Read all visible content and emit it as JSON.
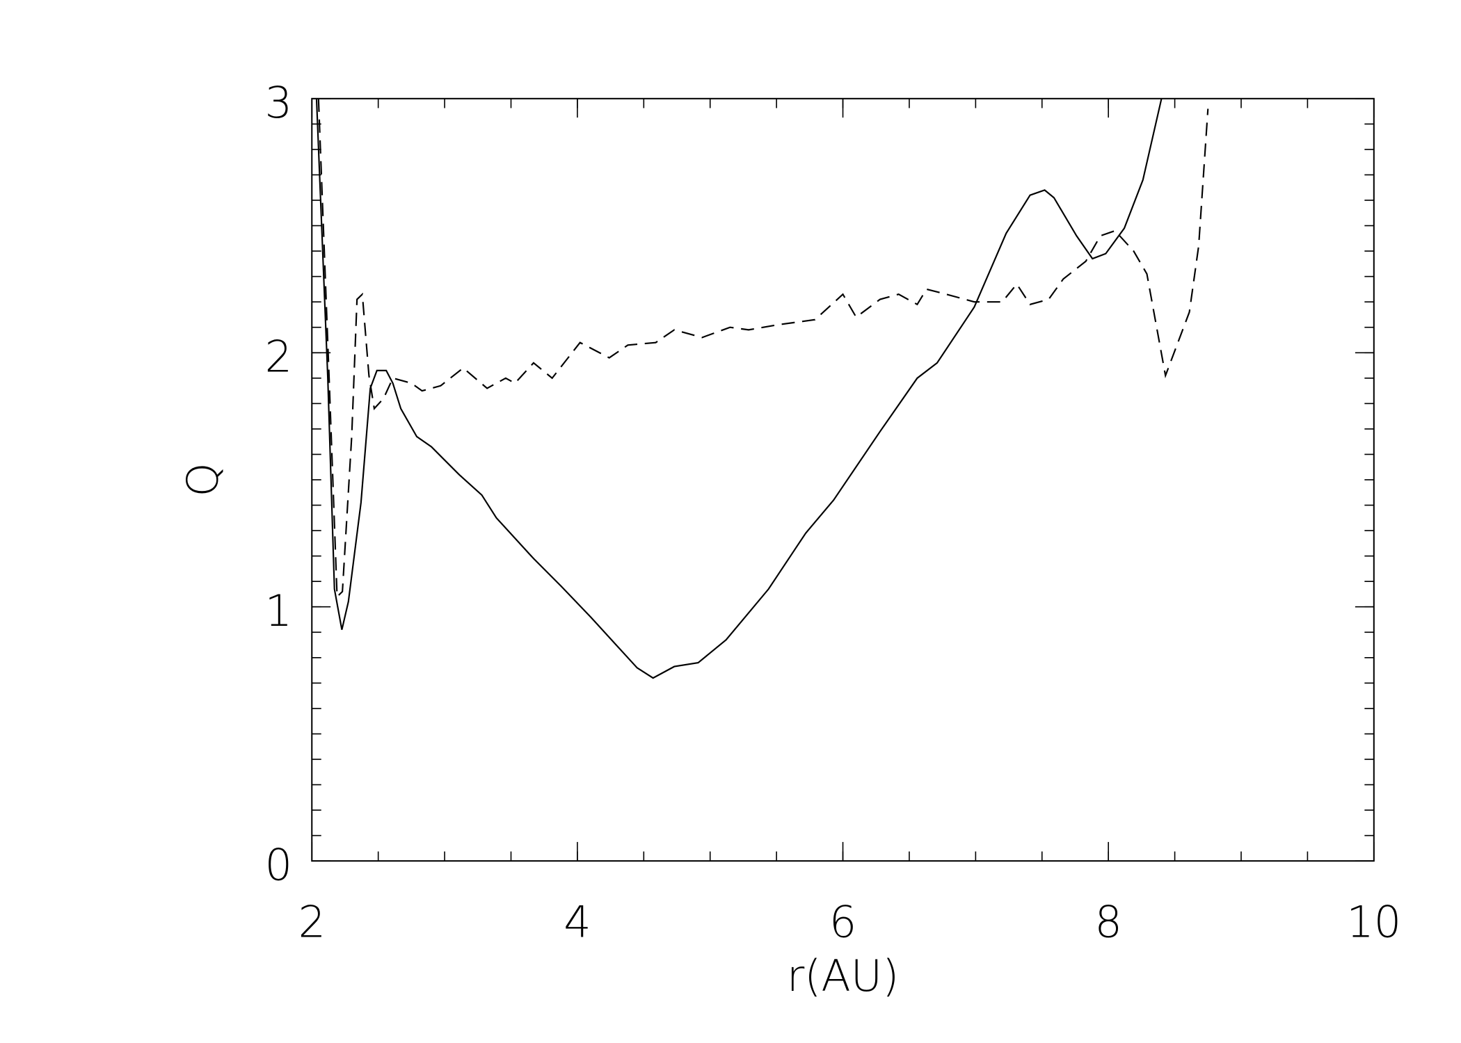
{
  "chart_data": {
    "type": "line",
    "xlabel": "r(AU)",
    "ylabel": "Q",
    "xlim": [
      2,
      10
    ],
    "ylim": [
      0,
      3
    ],
    "xticks": [
      2,
      4,
      6,
      8,
      10
    ],
    "yticks": [
      0,
      1,
      2,
      3
    ],
    "xminor_step": 0.5,
    "yminor_step": 0.1,
    "series": [
      {
        "color": "#000000",
        "dashed": false,
        "x": [
          2.035,
          2.12,
          2.17,
          2.226,
          2.275,
          2.37,
          2.44,
          2.49,
          2.56,
          2.61,
          2.67,
          2.79,
          2.9,
          3.11,
          3.28,
          3.39,
          3.67,
          3.88,
          4.1,
          4.31,
          4.45,
          4.57,
          4.73,
          4.91,
          5.12,
          5.44,
          5.72,
          5.93,
          6.28,
          6.56,
          6.71,
          6.99,
          7.23,
          7.41,
          7.52,
          7.59,
          7.76,
          7.88,
          7.98,
          8.12,
          8.26,
          8.4
        ],
        "values": [
          3.0,
          1.9,
          1.07,
          0.91,
          1.02,
          1.41,
          1.86,
          1.93,
          1.93,
          1.88,
          1.78,
          1.67,
          1.63,
          1.52,
          1.44,
          1.35,
          1.19,
          1.08,
          0.96,
          0.84,
          0.76,
          0.72,
          0.765,
          0.78,
          0.87,
          1.07,
          1.29,
          1.42,
          1.69,
          1.9,
          1.96,
          2.18,
          2.47,
          2.62,
          2.64,
          2.61,
          2.46,
          2.37,
          2.39,
          2.49,
          2.68,
          3.0
        ]
      },
      {
        "color": "#000000",
        "dashed": true,
        "x": [
          2.05,
          2.13,
          2.19,
          2.23,
          2.3,
          2.34,
          2.38,
          2.43,
          2.47,
          2.54,
          2.61,
          2.75,
          2.83,
          2.97,
          3.14,
          3.32,
          3.46,
          3.53,
          3.67,
          3.81,
          4.02,
          4.24,
          4.38,
          4.59,
          4.73,
          4.94,
          5.15,
          5.29,
          5.51,
          5.79,
          6.0,
          6.1,
          6.28,
          6.42,
          6.56,
          6.63,
          6.78,
          6.99,
          7.2,
          7.31,
          7.41,
          7.55,
          7.66,
          7.83,
          7.94,
          8.05,
          8.19,
          8.29,
          8.43,
          8.61,
          8.68,
          8.75
        ],
        "values": [
          3.0,
          1.9,
          1.04,
          1.06,
          1.67,
          2.21,
          2.23,
          1.91,
          1.78,
          1.82,
          1.9,
          1.88,
          1.85,
          1.87,
          1.94,
          1.86,
          1.9,
          1.88,
          1.96,
          1.9,
          2.04,
          1.98,
          2.03,
          2.04,
          2.09,
          2.06,
          2.1,
          2.09,
          2.11,
          2.13,
          2.23,
          2.14,
          2.21,
          2.23,
          2.19,
          2.25,
          2.23,
          2.2,
          2.2,
          2.27,
          2.19,
          2.21,
          2.29,
          2.36,
          2.46,
          2.48,
          2.4,
          2.31,
          1.91,
          2.16,
          2.42,
          2.96
        ]
      }
    ]
  }
}
